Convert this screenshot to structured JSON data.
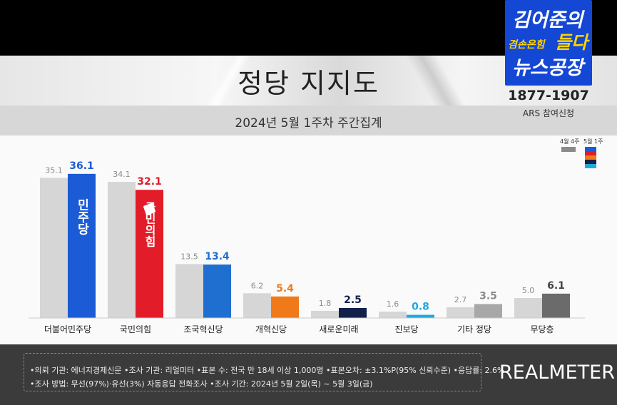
{
  "title": "정당 지지도",
  "subtitle": "2024년 5월 1주차 주간집계",
  "overlay": {
    "line1": "김어준의",
    "line2_small": "겸손은힘",
    "line2_big": "들다",
    "line3": "뉴스공장",
    "phone": "1877-1907",
    "ars": "ARS 참여신청"
  },
  "legend": {
    "prev": "4월 4주",
    "curr": "5월 1주"
  },
  "bar_logos": {
    "dem": "민주당",
    "ppp": "국민의힘"
  },
  "footer": {
    "line1": "•의뢰 기관: 에너지경제신문  •조사 기관: 리얼미터 •표본 수: 전국 만 18세 이상 1,000명 •표본오차: ±3.1%P(95% 신뢰수준) •응답률: 2.6%",
    "line2": "•조사 방법: 무선(97%)·유선(3%) 자동응답 전화조사  •조사 기간: 2024년 5월 2일(목) ~ 5월 3일(금)",
    "brand": "REALMETER"
  },
  "colors": {
    "prev": "#d6d6d6",
    "dem": "#1b5bd6",
    "ppp": "#e21c28",
    "rebuild": "#1f6fd1",
    "reform": "#f07a1a",
    "newfuture": "#13204a",
    "progressive": "#1ea9df",
    "other": "#a8a8a8",
    "none": "#6b6b6b"
  },
  "chart_data": {
    "type": "bar",
    "title": "정당 지지도",
    "subtitle": "2024년 5월 1주차 주간집계",
    "categories": [
      "더불어민주당",
      "국민의힘",
      "조국혁신당",
      "개혁신당",
      "새로운미래",
      "진보당",
      "기타 정당",
      "무당층"
    ],
    "series": [
      {
        "name": "4월 4주",
        "values": [
          35.1,
          34.1,
          13.5,
          6.2,
          1.8,
          1.6,
          2.7,
          5.0
        ]
      },
      {
        "name": "5월 1주",
        "values": [
          36.1,
          32.1,
          13.4,
          5.4,
          2.5,
          0.8,
          3.5,
          6.1
        ]
      }
    ],
    "series_colors": [
      "#d6d6d6",
      "#1b5bd6",
      "#e21c28",
      "#1f6fd1",
      "#f07a1a",
      "#13204a",
      "#1ea9df",
      "#a8a8a8",
      "#6b6b6b"
    ],
    "ylim": [
      0,
      40
    ],
    "grid": false,
    "legend": "top-right"
  }
}
